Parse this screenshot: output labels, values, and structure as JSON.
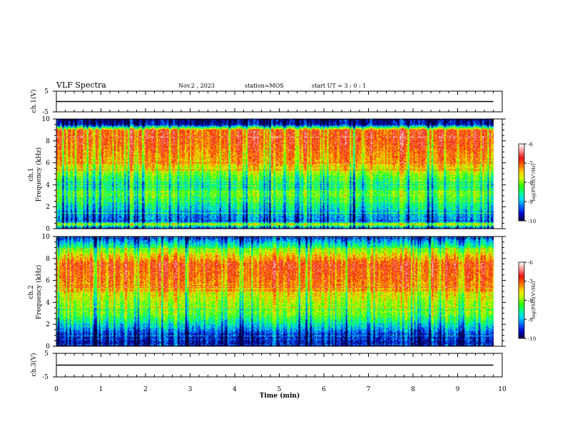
{
  "header": {
    "title": "VLF Spectra",
    "date": "Nov.2 , 2023",
    "station": "station=MOS",
    "start": "start UT = 3 : 0 : 1"
  },
  "colors": {
    "colormap": [
      "#00003a",
      "#0000c8",
      "#0064ff",
      "#00d7ff",
      "#00ff8c",
      "#32ff00",
      "#c8ff00",
      "#ffd200",
      "#ff6400",
      "#e61414",
      "#ff9696",
      "#ffffff"
    ],
    "trace": "#000000",
    "background": "#ffffff"
  },
  "chart_data": [
    {
      "type": "line",
      "name": "ch1-waveform",
      "ylabel": "ch.1(V)",
      "ylim": [
        -5,
        5
      ],
      "yticks": [
        "5",
        "-5"
      ],
      "xlim": [
        0,
        10
      ],
      "x": [
        0,
        9.8
      ],
      "y": [
        0,
        0
      ]
    },
    {
      "type": "heatmap",
      "name": "ch1-spectrogram",
      "ylabel": "ch.1 Frequency (kHz)",
      "ylabel_lines": [
        "ch.1",
        "Frequency (kHz)"
      ],
      "ylim": [
        0,
        10
      ],
      "yticks": [
        "0",
        "2",
        "4",
        "6",
        "8",
        "10"
      ],
      "xlim": [
        0,
        10
      ],
      "data_end_min": 9.8,
      "colorbar": {
        "label": "log(PSD)(V²/Hz)",
        "range": [
          -10,
          -6
        ],
        "ticks": [
          "-6",
          "-7",
          "-8",
          "-9",
          "-10"
        ]
      },
      "profile_log_psd": [
        {
          "f": 0.0,
          "v": -9.4
        },
        {
          "f": 0.4,
          "v": -7.6
        },
        {
          "f": 0.6,
          "v": -9.2
        },
        {
          "f": 2.0,
          "v": -8.6
        },
        {
          "f": 3.2,
          "v": -8.1
        },
        {
          "f": 4.0,
          "v": -8.6
        },
        {
          "f": 6.0,
          "v": -7.3
        },
        {
          "f": 8.0,
          "v": -6.9
        },
        {
          "f": 9.0,
          "v": -6.9
        },
        {
          "f": 9.5,
          "v": -9.6
        },
        {
          "f": 10.0,
          "v": -9.8
        }
      ]
    },
    {
      "type": "heatmap",
      "name": "ch2-spectrogram",
      "ylabel": "ch.2 Frequency (kHz)",
      "ylabel_lines": [
        "ch.2",
        "Frequency (kHz)"
      ],
      "ylim": [
        0,
        10
      ],
      "yticks": [
        "0",
        "2",
        "4",
        "6",
        "8",
        "10"
      ],
      "xlim": [
        0,
        10
      ],
      "data_end_min": 9.8,
      "colorbar": {
        "label": "log(PSD)(V²/Hz)",
        "range": [
          -10,
          -6
        ],
        "ticks": [
          "-6",
          "-7",
          "-8",
          "-9",
          "-10"
        ]
      },
      "profile_log_psd": [
        {
          "f": 0.0,
          "v": -9.6
        },
        {
          "f": 1.0,
          "v": -9.4
        },
        {
          "f": 2.0,
          "v": -8.6
        },
        {
          "f": 3.0,
          "v": -8.0
        },
        {
          "f": 4.0,
          "v": -7.8
        },
        {
          "f": 6.0,
          "v": -7.0
        },
        {
          "f": 7.5,
          "v": -6.8
        },
        {
          "f": 8.5,
          "v": -7.6
        },
        {
          "f": 9.3,
          "v": -8.6
        },
        {
          "f": 10.0,
          "v": -9.4
        }
      ]
    },
    {
      "type": "line",
      "name": "ch3-waveform",
      "ylabel": "ch.3(V)",
      "ylim": [
        -5,
        5
      ],
      "yticks": [
        "5",
        "-5"
      ],
      "xlim": [
        0,
        10
      ],
      "x": [
        0,
        9.8
      ],
      "y": [
        0,
        0
      ],
      "xlabel": "Time (min)",
      "xticks": [
        "0",
        "1",
        "2",
        "3",
        "4",
        "5",
        "6",
        "7",
        "8",
        "9",
        "10"
      ]
    }
  ]
}
